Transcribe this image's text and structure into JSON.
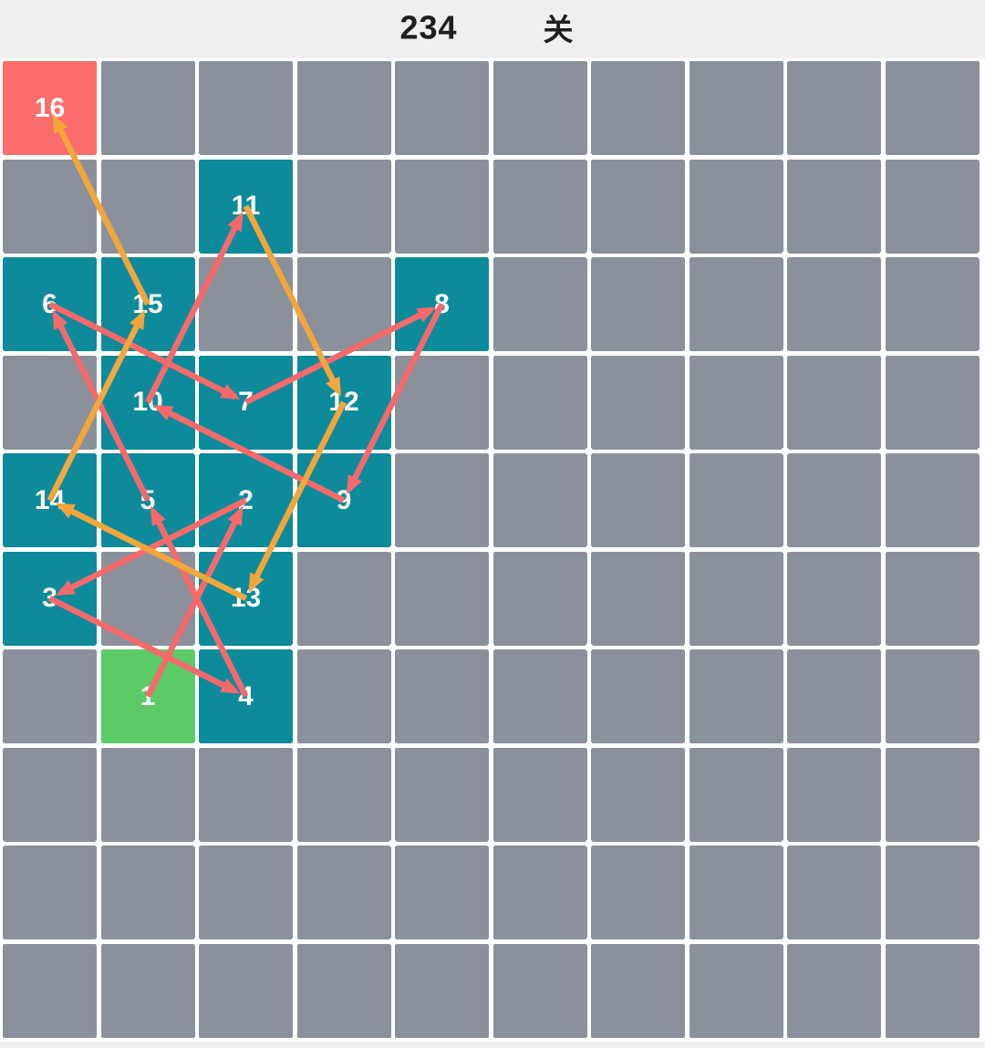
{
  "header": {
    "level_number": "234",
    "level_suffix": "关"
  },
  "colors": {
    "page_bg": "#efefef",
    "board_bg": "#ffffff",
    "cell_empty": "#8a919b",
    "cell_step": "#0d8b9b",
    "cell_start": "#5bca67",
    "cell_end": "#fb6c6c",
    "path_red": "#f5696d",
    "path_orange": "#f2a63c",
    "grid_dot": "#ffffff",
    "number_text": "#ffffff",
    "title_text": "#1f1f1f"
  },
  "board": {
    "cols": 10,
    "rows": 10,
    "numbered_cells": [
      {
        "num": "1",
        "col": 1,
        "row": 6,
        "kind": "start"
      },
      {
        "num": "2",
        "col": 2,
        "row": 4,
        "kind": "step"
      },
      {
        "num": "3",
        "col": 0,
        "row": 5,
        "kind": "step"
      },
      {
        "num": "4",
        "col": 2,
        "row": 6,
        "kind": "step"
      },
      {
        "num": "5",
        "col": 1,
        "row": 4,
        "kind": "step"
      },
      {
        "num": "6",
        "col": 0,
        "row": 2,
        "kind": "step"
      },
      {
        "num": "7",
        "col": 2,
        "row": 3,
        "kind": "step"
      },
      {
        "num": "8",
        "col": 4,
        "row": 2,
        "kind": "step"
      },
      {
        "num": "9",
        "col": 3,
        "row": 4,
        "kind": "step"
      },
      {
        "num": "10",
        "col": 1,
        "row": 3,
        "kind": "step"
      },
      {
        "num": "11",
        "col": 2,
        "row": 1,
        "kind": "step"
      },
      {
        "num": "12",
        "col": 3,
        "row": 3,
        "kind": "step"
      },
      {
        "num": "13",
        "col": 2,
        "row": 5,
        "kind": "step"
      },
      {
        "num": "14",
        "col": 0,
        "row": 4,
        "kind": "step"
      },
      {
        "num": "15",
        "col": 1,
        "row": 2,
        "kind": "step"
      },
      {
        "num": "16",
        "col": 0,
        "row": 0,
        "kind": "end"
      }
    ],
    "path_segments": [
      {
        "from": "1",
        "to": "2",
        "color_key": "path_red"
      },
      {
        "from": "2",
        "to": "3",
        "color_key": "path_red"
      },
      {
        "from": "3",
        "to": "4",
        "color_key": "path_red"
      },
      {
        "from": "4",
        "to": "5",
        "color_key": "path_red"
      },
      {
        "from": "5",
        "to": "6",
        "color_key": "path_red"
      },
      {
        "from": "6",
        "to": "7",
        "color_key": "path_red"
      },
      {
        "from": "7",
        "to": "8",
        "color_key": "path_red"
      },
      {
        "from": "8",
        "to": "9",
        "color_key": "path_red"
      },
      {
        "from": "9",
        "to": "10",
        "color_key": "path_red"
      },
      {
        "from": "10",
        "to": "11",
        "color_key": "path_red"
      },
      {
        "from": "11",
        "to": "12",
        "color_key": "path_orange"
      },
      {
        "from": "12",
        "to": "13",
        "color_key": "path_orange"
      },
      {
        "from": "13",
        "to": "14",
        "color_key": "path_orange"
      },
      {
        "from": "14",
        "to": "15",
        "color_key": "path_orange"
      },
      {
        "from": "15",
        "to": "16",
        "color_key": "path_orange"
      }
    ]
  }
}
